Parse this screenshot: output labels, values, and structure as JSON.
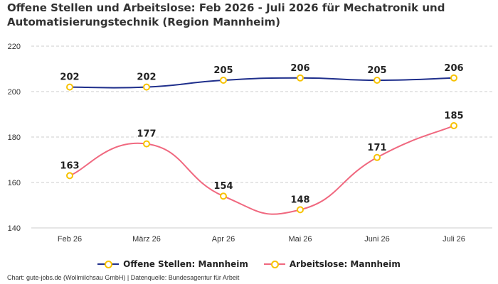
{
  "chart_data": {
    "type": "line",
    "title": "Offene Stellen und Arbeitslose: Feb 2026 - Juli 2026 für Mechatronik und Automatisierungstechnik (Region Mannheim)",
    "categories": [
      "Feb 26",
      "März 26",
      "Apr 26",
      "Mai 26",
      "Juni 26",
      "Juli 26"
    ],
    "ylim": [
      140,
      220
    ],
    "yticks": [
      140,
      160,
      180,
      200,
      220
    ],
    "grid": true,
    "legend": "bottom",
    "series": [
      {
        "name": "Offene Stellen: Mannheim",
        "values": [
          202,
          202,
          205,
          206,
          205,
          206
        ],
        "color": "#1f2f8c"
      },
      {
        "name": "Arbeitslose: Mannheim",
        "values": [
          163,
          177,
          154,
          148,
          171,
          185
        ],
        "color": "#f0687f"
      }
    ],
    "marker_color": "#f7c200"
  },
  "credits": "Chart: gute-jobs.de (Wollmilchsau GmbH) | Datenquelle: Bundesagentur für Arbeit"
}
